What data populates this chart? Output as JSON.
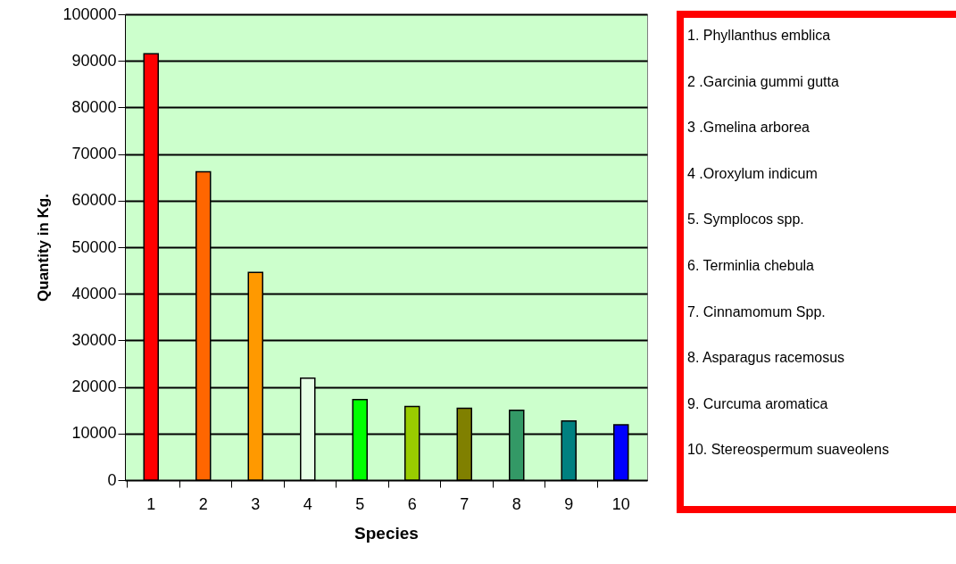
{
  "chart_data": {
    "type": "bar",
    "xlabel": "Species",
    "ylabel": "Quantity in Kg.",
    "categories": [
      "1",
      "2",
      "3",
      "4",
      "5",
      "6",
      "7",
      "8",
      "9",
      "10"
    ],
    "values": [
      91500,
      66200,
      44600,
      21900,
      17300,
      15800,
      15400,
      15000,
      12700,
      11900
    ],
    "colors": [
      "#ff0000",
      "#ff6600",
      "#ff9900",
      "#e6ffe6",
      "#00ff00",
      "#99cc00",
      "#808000",
      "#339966",
      "#008080",
      "#0000ff"
    ],
    "ylim": [
      0,
      100000
    ],
    "yticks": [
      0,
      10000,
      20000,
      30000,
      40000,
      50000,
      60000,
      70000,
      80000,
      90000,
      100000
    ],
    "grid": "y",
    "annotations": [
      "1. Phyllanthus emblica",
      "2 .Garcinia gummi gutta",
      "3 .Gmelina arborea",
      "4 .Oroxylum indicum",
      "5. Symplocos spp.",
      "6. Terminlia chebula",
      "7. Cinnamomum Spp.",
      "8. Asparagus racemosus",
      "9. Curcuma aromatica",
      "10. Stereospermum suaveolens"
    ]
  }
}
